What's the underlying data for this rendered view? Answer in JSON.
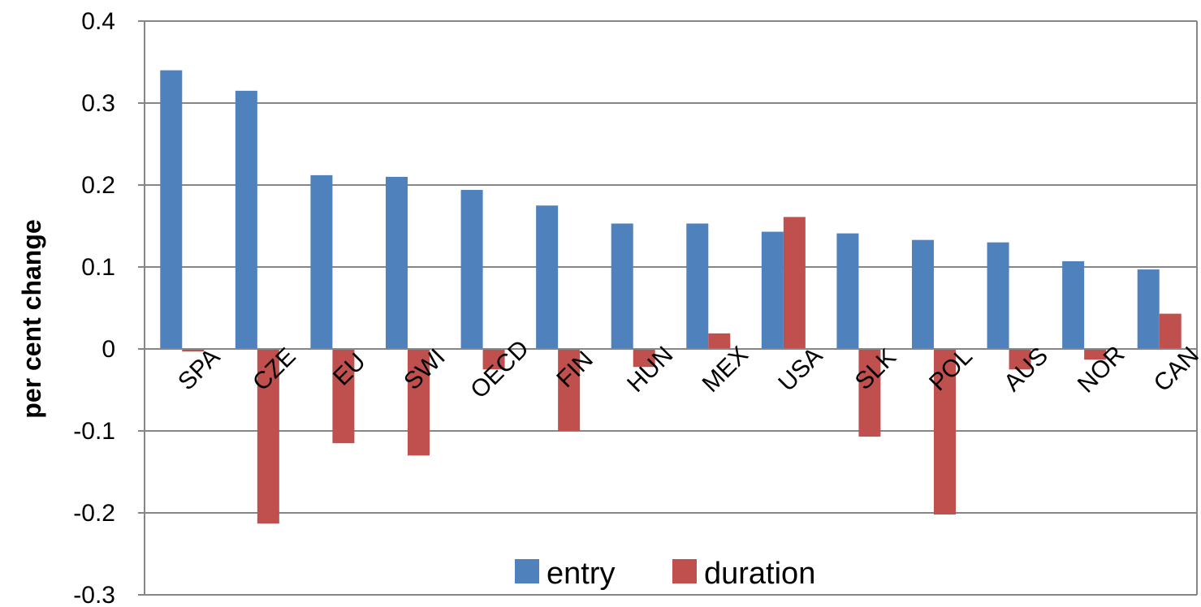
{
  "chart_data": {
    "type": "bar",
    "title": "",
    "xlabel": "",
    "ylabel": "per cent change",
    "ylim": [
      -0.3,
      0.4
    ],
    "yticks": [
      0.4,
      0.3,
      0.2,
      0.1,
      0,
      -0.1,
      -0.2,
      -0.3
    ],
    "ytick_labels": [
      "0.4",
      "0.3",
      "0.2",
      "0.1",
      "0",
      "-0.1",
      "-0.2",
      "-0.3"
    ],
    "grid": true,
    "legend_position": "bottom",
    "categories": [
      "SPA",
      "CZE",
      "EU",
      "SWI",
      "OECD",
      "FIN",
      "HUN",
      "MEX",
      "USA",
      "SLK",
      "POL",
      "AUS",
      "NOR",
      "CAN"
    ],
    "series": [
      {
        "name": "entry",
        "color": "#4F81BD",
        "values": [
          0.34,
          0.315,
          0.212,
          0.21,
          0.194,
          0.175,
          0.153,
          0.153,
          0.143,
          0.141,
          0.133,
          0.13,
          0.107,
          0.097
        ]
      },
      {
        "name": "duration",
        "color": "#C0504D",
        "values": [
          -0.003,
          -0.213,
          -0.115,
          -0.13,
          -0.025,
          -0.1,
          -0.022,
          0.019,
          0.161,
          -0.107,
          -0.202,
          -0.025,
          -0.013,
          0.043
        ]
      }
    ]
  }
}
